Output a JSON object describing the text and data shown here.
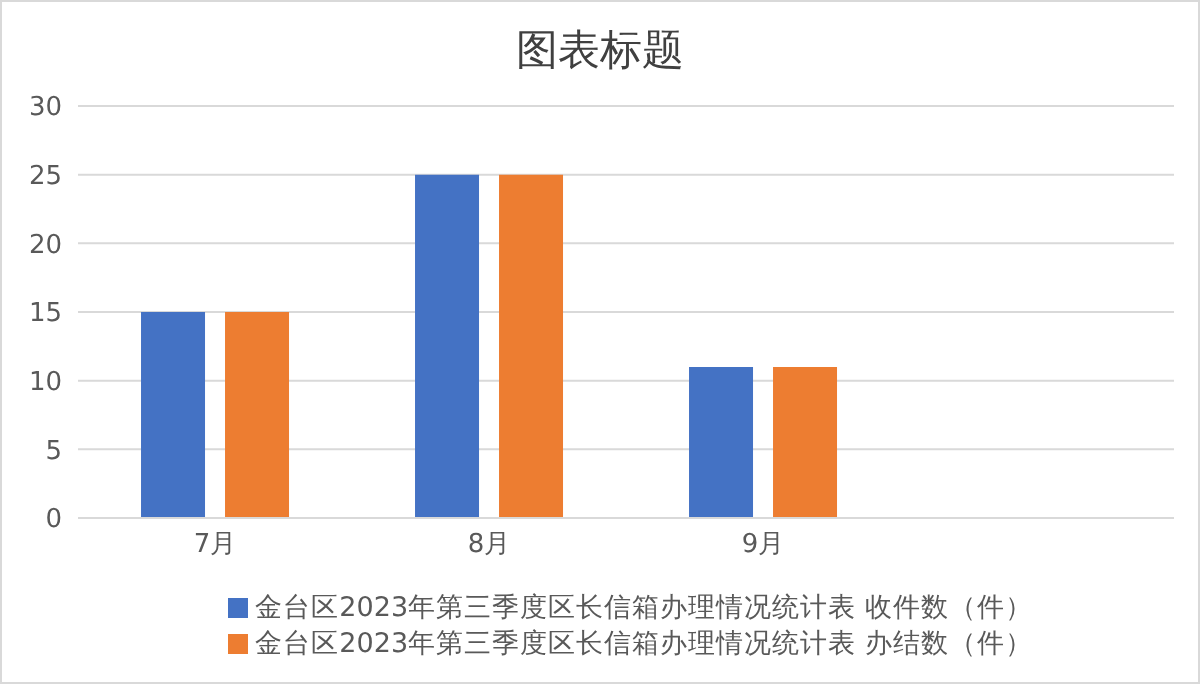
{
  "chart_data": {
    "type": "bar",
    "title": "图表标题",
    "categories": [
      "7月",
      "8月",
      "9月",
      null
    ],
    "series": [
      {
        "name": "金台区2023年第三季度区长信箱办理情况统计表 收件数（件）",
        "color": "#4472c4",
        "values": [
          15,
          25,
          11,
          null
        ]
      },
      {
        "name": "金台区2023年第三季度区长信箱办理情况统计表 办结数（件）",
        "color": "#ed7d31",
        "values": [
          15,
          25,
          11,
          null
        ]
      }
    ],
    "ylim": [
      0,
      30
    ],
    "yticks": [
      0,
      5,
      10,
      15,
      20,
      25,
      30
    ],
    "grid": "y",
    "legend": "bottom"
  }
}
